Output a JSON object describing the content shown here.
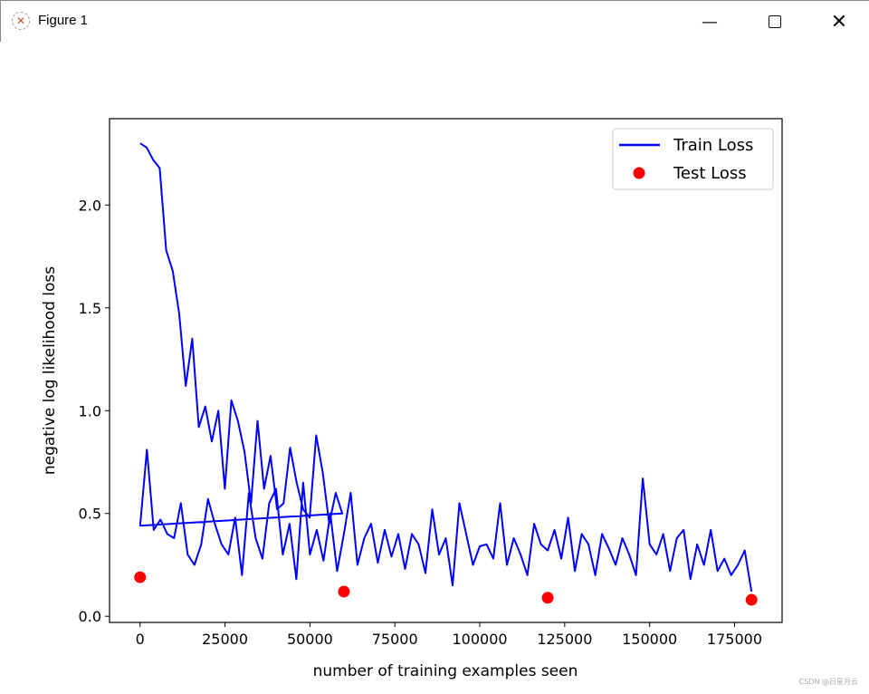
{
  "window": {
    "title": "Figure 1",
    "minimize_icon": "minimize-icon",
    "maximize_icon": "maximize-icon",
    "close_icon": "close-icon"
  },
  "watermark": "CSDN @日星月云",
  "chart_data": {
    "type": "line",
    "xlabel": "number of training examples seen",
    "ylabel": "negative log likelihood loss",
    "xlim": [
      -9000,
      189000
    ],
    "ylim": [
      -0.03,
      2.42
    ],
    "xticks": [
      0,
      25000,
      50000,
      75000,
      100000,
      125000,
      150000,
      175000
    ],
    "xtick_labels": [
      "0",
      "25000",
      "50000",
      "75000",
      "100000",
      "125000",
      "150000",
      "175000"
    ],
    "yticks": [
      0.0,
      0.5,
      1.0,
      1.5,
      2.0
    ],
    "ytick_labels": [
      "0.0",
      "0.5",
      "1.0",
      "1.5",
      "2.0"
    ],
    "legend": {
      "placement": "top-right",
      "entries": [
        "Train Loss",
        "Test Loss"
      ]
    },
    "colors": {
      "train": "#0000ff",
      "test": "#ff0000"
    },
    "series": [
      {
        "name": "Train Loss",
        "kind": "line",
        "segments": [
          {
            "x_start": 0,
            "x_step": 1920,
            "values": [
              2.3,
              2.28,
              2.22,
              2.18,
              1.78,
              1.68,
              1.47,
              1.12,
              1.35,
              0.92,
              1.02,
              0.85,
              1.0,
              0.62,
              1.05,
              0.95,
              0.8,
              0.55,
              0.95,
              0.62,
              0.78,
              0.52,
              0.55,
              0.82,
              0.65,
              0.52,
              0.48,
              0.88,
              0.7,
              0.45,
              0.6,
              0.5
            ]
          },
          {
            "x_start": 0,
            "x_step": 2000,
            "values": [
              0.44,
              0.81,
              0.42,
              0.47,
              0.4,
              0.38,
              0.55,
              0.3,
              0.25,
              0.35,
              0.57,
              0.45,
              0.35,
              0.3,
              0.48,
              0.2,
              0.6,
              0.38,
              0.28,
              0.55,
              0.62,
              0.3,
              0.45,
              0.18,
              0.65,
              0.3,
              0.42,
              0.27,
              0.5,
              0.22,
              0.4,
              0.6,
              0.25,
              0.38,
              0.45,
              0.26,
              0.42,
              0.29,
              0.4,
              0.23,
              0.4,
              0.35,
              0.21,
              0.52,
              0.3,
              0.38,
              0.15,
              0.55,
              0.4,
              0.25,
              0.34,
              0.35,
              0.28,
              0.55,
              0.25,
              0.38,
              0.3,
              0.2,
              0.45,
              0.35,
              0.32,
              0.42,
              0.28,
              0.48,
              0.22,
              0.4,
              0.35,
              0.2,
              0.4,
              0.33,
              0.25,
              0.38,
              0.3,
              0.2,
              0.67,
              0.35,
              0.3,
              0.4,
              0.22,
              0.38,
              0.42,
              0.18,
              0.35,
              0.25,
              0.42,
              0.22,
              0.28,
              0.2,
              0.25,
              0.32,
              0.12
            ]
          }
        ]
      },
      {
        "name": "Test Loss",
        "kind": "scatter",
        "x": [
          0,
          60000,
          120000,
          180000
        ],
        "y": [
          0.19,
          0.12,
          0.09,
          0.08
        ]
      }
    ]
  }
}
